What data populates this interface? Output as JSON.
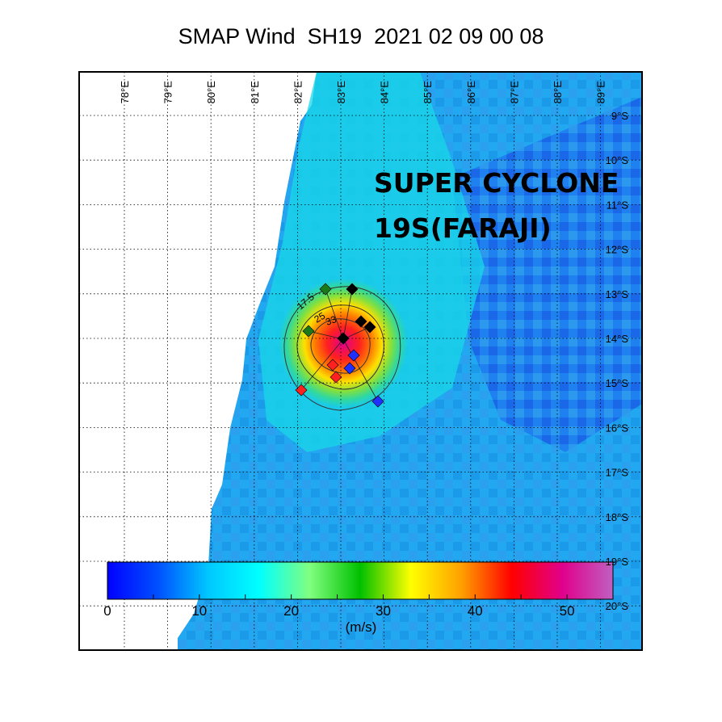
{
  "title": "SMAP Wind  SH19  2021 02 09 00 08",
  "annotation": {
    "line1": "SUPER CYCLONE",
    "line2": "19S(FARAJI)"
  },
  "longitude_labels": [
    "78°E",
    "79°E",
    "80°E",
    "81°E",
    "82°E",
    "83°E",
    "84°E",
    "85°E",
    "86°E",
    "87°E",
    "88°E",
    "89°E"
  ],
  "latitude_labels": [
    "9°S",
    "10°S",
    "11°S",
    "12°S",
    "13°S",
    "14°S",
    "15°S",
    "16°S",
    "17°S",
    "18°S",
    "19°S",
    "20°S"
  ],
  "colorbar": {
    "min": 0,
    "max": 55,
    "tick_labels": [
      "0",
      "10",
      "20",
      "30",
      "40",
      "50"
    ],
    "unit_label": "(m/s)",
    "stops": [
      "#0000ff",
      "#0050ff",
      "#00c8ff",
      "#00ffff",
      "#80ff80",
      "#00c000",
      "#ffff00",
      "#ffa000",
      "#ff0000",
      "#e0008c",
      "#c060c0"
    ]
  },
  "contour_labels": [
    "17.5",
    "25",
    "33"
  ],
  "colors": {
    "swath_background": "#1ea8f2",
    "storm_core": "#ff2020"
  }
}
